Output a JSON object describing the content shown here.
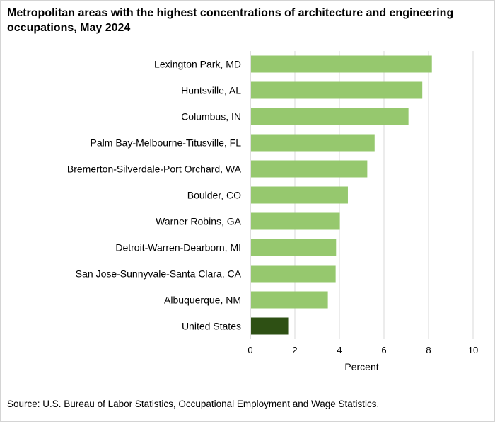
{
  "title": "Metropolitan areas with the highest concentrations of architecture and engineering occupations, May 2024",
  "source": "Source: U.S. Bureau of Labor Statistics, Occupational Employment and Wage Statistics.",
  "colors": {
    "metro_bar": "#96c86e",
    "us_bar": "#2e5014",
    "grid": "#d9d9d9"
  },
  "chart_data": {
    "type": "bar",
    "orientation": "horizontal",
    "categories": [
      "Lexington Park, MD",
      "Huntsville, AL",
      "Columbus, IN",
      "Palm Bay-Melbourne-Titusville, FL",
      "Bremerton-Silverdale-Port Orchard, WA",
      "Boulder, CO",
      "Warner Robins, GA",
      "Detroit-Warren-Dearborn, MI",
      "San Jose-Sunnyvale-Santa Clara, CA",
      "Albuquerque, NM",
      "United States"
    ],
    "values": [
      8.15,
      7.72,
      7.1,
      5.58,
      5.25,
      4.38,
      4.02,
      3.85,
      3.83,
      3.48,
      1.7
    ],
    "xlabel": "Percent",
    "ylabel": "",
    "xlim": [
      0,
      10
    ],
    "xticks": [
      "0",
      "2",
      "4",
      "6",
      "8",
      "10"
    ],
    "grid": "vertical"
  }
}
